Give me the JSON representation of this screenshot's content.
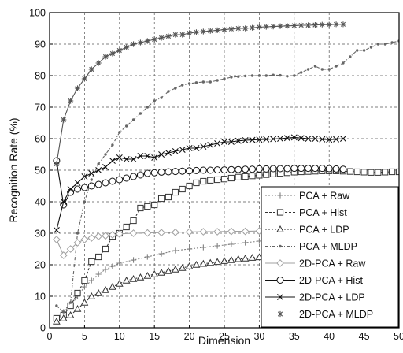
{
  "chart_data": {
    "type": "line",
    "title": "",
    "xlabel": "Dimension",
    "ylabel": "Recognition Rate (%)",
    "xlim": [
      0,
      50
    ],
    "ylim": [
      0,
      100
    ],
    "xticks": [
      0,
      5,
      10,
      15,
      20,
      25,
      30,
      35,
      40,
      45,
      50
    ],
    "yticks": [
      0,
      10,
      20,
      30,
      40,
      50,
      60,
      70,
      80,
      90,
      100
    ],
    "grid": true,
    "legend_position": "bottom-right",
    "series": [
      {
        "name": "PCA + Raw",
        "marker": "plus",
        "dash": "2 2",
        "color": "#808080",
        "x": [
          1,
          2,
          3,
          4,
          5,
          6,
          7,
          8,
          9,
          10,
          12,
          14,
          16,
          18,
          20,
          22,
          24,
          26,
          28,
          30,
          32,
          34,
          36,
          38,
          40,
          42
        ],
        "y": [
          3,
          5,
          7,
          10,
          13,
          15,
          17,
          18.5,
          19.5,
          20.5,
          21.5,
          22.5,
          23.5,
          24.5,
          25,
          25.5,
          26,
          26.5,
          27,
          27.5,
          28,
          28.3,
          28.6,
          28.9,
          29.1,
          29.3
        ]
      },
      {
        "name": "PCA + Hist",
        "marker": "square",
        "dash": "3 2",
        "color": "#333333",
        "x": [
          1,
          2,
          3,
          4,
          5,
          6,
          7,
          8,
          9,
          10,
          11,
          12,
          13,
          14,
          15,
          16,
          17,
          18,
          19,
          20,
          21,
          22,
          23,
          24,
          25,
          26,
          27,
          28,
          29,
          30,
          31,
          32,
          33,
          34,
          35,
          36,
          37,
          38,
          39,
          40,
          41,
          42,
          43,
          44,
          45,
          46,
          47,
          48,
          49,
          50
        ],
        "y": [
          3,
          4,
          7,
          11,
          15,
          21,
          22.5,
          25,
          29,
          30,
          32,
          34,
          38,
          38.5,
          39,
          41,
          41.5,
          43,
          44,
          45,
          46,
          46.5,
          46.8,
          47,
          47.2,
          47.5,
          47.8,
          48,
          48.2,
          48.4,
          48.6,
          48.8,
          49,
          49.2,
          49.4,
          49.5,
          49.6,
          49.7,
          49.8,
          49.8,
          49.8,
          49.7,
          49.6,
          49.5,
          49.4,
          49.3,
          49.3,
          49.4,
          49.5,
          49.5
        ]
      },
      {
        "name": "PCA + LDP",
        "marker": "triangle",
        "dash": "2 2",
        "color": "#333333",
        "x": [
          1,
          2,
          3,
          4,
          5,
          6,
          7,
          8,
          9,
          10,
          11,
          12,
          13,
          14,
          15,
          16,
          17,
          18,
          19,
          20,
          21,
          22,
          23,
          24,
          25,
          26,
          27,
          28,
          29,
          30,
          31,
          32,
          33,
          34,
          35,
          36,
          37,
          38,
          39,
          40,
          41,
          42,
          50
        ],
        "y": [
          2,
          3,
          4,
          6,
          8,
          10,
          11,
          12,
          13,
          14,
          15,
          15.5,
          16,
          16.5,
          17,
          17.5,
          18,
          18.5,
          19,
          19.5,
          20,
          20.3,
          20.6,
          20.9,
          21.2,
          21.5,
          21.8,
          22,
          22.2,
          22.4,
          22.6,
          22.8,
          23,
          23.2,
          23.4,
          23.6,
          23.8,
          24,
          24.2,
          24.4,
          24.6,
          24.8,
          25.5
        ]
      },
      {
        "name": "PCA + MLDP",
        "marker": "dot",
        "dash": "4 2 1 2",
        "color": "#666666",
        "x": [
          1,
          2,
          3,
          4,
          5,
          6,
          7,
          8,
          9,
          10,
          11,
          12,
          13,
          14,
          15,
          16,
          17,
          18,
          19,
          20,
          21,
          22,
          23,
          24,
          25,
          26,
          27,
          28,
          29,
          30,
          31,
          32,
          33,
          34,
          35,
          36,
          37,
          38,
          39,
          40,
          41,
          42,
          43,
          44,
          45,
          46,
          47,
          48,
          49,
          50
        ],
        "y": [
          7,
          5,
          8,
          30,
          40,
          47,
          52,
          55,
          58,
          62,
          64,
          66,
          68,
          70,
          72,
          73,
          75,
          76,
          77,
          77.5,
          77.8,
          78,
          78,
          78.5,
          79,
          79.5,
          79.7,
          79.9,
          80,
          80,
          80,
          80.2,
          80.1,
          79.8,
          80,
          81,
          82,
          83,
          82,
          82,
          83,
          84,
          86,
          88,
          88,
          89,
          90,
          90,
          90.5,
          91
        ]
      },
      {
        "name": "2D-PCA + Raw",
        "marker": "diamond",
        "dash": "",
        "color": "#a0a0a0",
        "x": [
          1,
          2,
          3,
          4,
          5,
          6,
          7,
          8,
          9,
          10,
          12,
          14,
          16,
          18,
          20,
          22,
          24,
          26,
          28,
          30,
          32,
          34,
          36,
          38,
          40,
          42
        ],
        "y": [
          28,
          23,
          25,
          27,
          28,
          28.5,
          29,
          29.2,
          29.5,
          29.8,
          30,
          30.1,
          30.2,
          30.3,
          30.4,
          30.5,
          30.5,
          30.6,
          30.6,
          30.7,
          30.7,
          30.8,
          30.8,
          30.8,
          30.9,
          30.9
        ]
      },
      {
        "name": "2D-PCA + Hist",
        "marker": "circle",
        "dash": "",
        "color": "#111111",
        "x": [
          1,
          2,
          3,
          4,
          5,
          6,
          7,
          8,
          9,
          10,
          11,
          12,
          13,
          14,
          15,
          16,
          17,
          18,
          19,
          20,
          21,
          22,
          23,
          24,
          25,
          26,
          27,
          28,
          29,
          30,
          31,
          32,
          33,
          34,
          35,
          36,
          37,
          38,
          39,
          40,
          41,
          42
        ],
        "y": [
          53,
          39,
          43,
          44,
          44.5,
          45,
          45.5,
          46,
          46.5,
          47,
          47.5,
          48,
          48.5,
          49,
          49.2,
          49.4,
          49.5,
          49.6,
          49.7,
          49.8,
          49.9,
          50,
          50,
          50.1,
          50.1,
          50.2,
          50.2,
          50.3,
          50.3,
          50.4,
          50.4,
          50.5,
          50.5,
          50.5,
          50.6,
          50.6,
          50.6,
          50.6,
          50.6,
          50.5,
          50.4,
          50.3
        ]
      },
      {
        "name": "2D-PCA + LDP",
        "marker": "x",
        "dash": "",
        "color": "#111111",
        "x": [
          1,
          2,
          3,
          4,
          5,
          6,
          7,
          8,
          9,
          10,
          11,
          12,
          13,
          14,
          15,
          16,
          17,
          18,
          19,
          20,
          21,
          22,
          23,
          24,
          25,
          26,
          27,
          28,
          29,
          30,
          31,
          32,
          33,
          34,
          35,
          36,
          37,
          38,
          39,
          40,
          41,
          42
        ],
        "y": [
          31,
          40,
          44,
          46,
          48,
          49,
          50,
          51,
          53,
          54,
          53.5,
          53.5,
          54.5,
          54.5,
          54,
          55,
          55.5,
          56,
          56.5,
          57,
          57,
          57.5,
          58,
          58.5,
          59,
          59,
          59.3,
          59.5,
          59.6,
          59.7,
          59.8,
          59.9,
          60,
          60.2,
          60.4,
          60.2,
          60,
          60,
          59.8,
          59.7,
          59.8,
          60
        ]
      },
      {
        "name": "2D-PCA + MLDP",
        "marker": "star",
        "dash": "",
        "color": "#555555",
        "x": [
          1,
          2,
          3,
          4,
          5,
          6,
          7,
          8,
          9,
          10,
          11,
          12,
          13,
          14,
          15,
          16,
          17,
          18,
          19,
          20,
          21,
          22,
          23,
          24,
          25,
          26,
          27,
          28,
          29,
          30,
          31,
          32,
          33,
          34,
          35,
          36,
          37,
          38,
          39,
          40,
          41,
          42
        ],
        "y": [
          52,
          66,
          72,
          76,
          79,
          82,
          84,
          86,
          87,
          88,
          89,
          90,
          90.5,
          91,
          91.5,
          92,
          92.5,
          93,
          93,
          93.5,
          93.8,
          94,
          94.2,
          94.4,
          94.6,
          94.8,
          95,
          95,
          95.2,
          95.4,
          95.5,
          95.6,
          95.7,
          95.8,
          95.9,
          96,
          96,
          96.1,
          96.2,
          96.2,
          96.3,
          96.3
        ]
      }
    ]
  }
}
